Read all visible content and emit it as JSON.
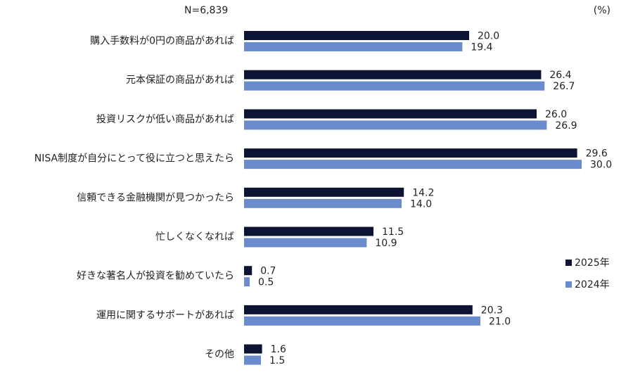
{
  "chart_data": {
    "type": "barh",
    "note_left": "N=6,839",
    "unit": "(%)",
    "categories": [
      "購入手数料が0円の商品があれば",
      "元本保証の商品があれば",
      "投資リスクが低い商品があれば",
      "NISA制度が自分にとって役に立つと思えたら",
      "信頼できる金融機関が見つかったら",
      "忙しくなくなれば",
      "好きな著名人が投資を勧めていたら",
      "運用に関するサポートがあれば",
      "その他"
    ],
    "series": [
      {
        "name": "2025年",
        "color": "#0d1333",
        "values": [
          20.0,
          26.4,
          26.0,
          29.6,
          14.2,
          11.5,
          0.7,
          20.3,
          1.6
        ],
        "value_labels": [
          "20.0",
          "26.4",
          "26.0",
          "29.6",
          "14.2",
          "11.5",
          "0.7",
          "20.3",
          "1.6"
        ]
      },
      {
        "name": "2024年",
        "color": "#6a8ccc",
        "values": [
          19.4,
          26.7,
          26.9,
          30.0,
          14.0,
          10.9,
          0.5,
          21.0,
          1.5
        ],
        "value_labels": [
          "19.4",
          "26.7",
          "26.9",
          "30.0",
          "14.0",
          "10.9",
          "0.5",
          "21.0",
          "1.5"
        ]
      }
    ],
    "legend": "right"
  }
}
